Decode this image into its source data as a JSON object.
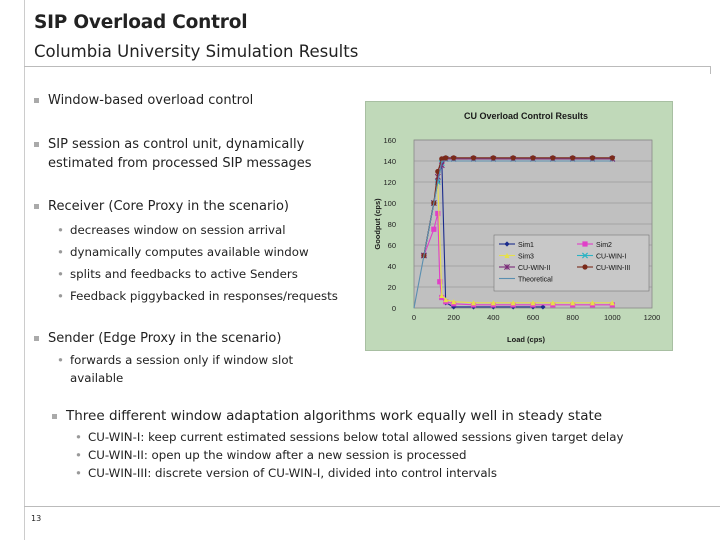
{
  "slide": {
    "title": "SIP Overload Control",
    "subtitle": "Columbia University Simulation Results",
    "page_number": "13",
    "bullets": [
      "Window-based overload control",
      "SIP session as control unit, dynamically estimated from processed SIP messages",
      "Receiver (Core Proxy in the scenario)",
      "Sender (Edge Proxy in the scenario)"
    ],
    "receiver_subs": [
      "decreases window on session arrival",
      "dynamically computes available window",
      "splits and feedbacks to active Senders",
      "Feedback piggybacked in responses/requests"
    ],
    "sender_sub": "forwards a session only if window slot available",
    "summary": "Three different window adaptation algorithms work equally well in steady state",
    "summary_subs": [
      "CU-WIN-I: keep current estimated sessions below total allowed sessions given target delay",
      "CU-WIN-II: open up the window after a new session is processed",
      "CU-WIN-III: discrete version of CU-WIN-I, divided into control intervals"
    ]
  },
  "chart_data": {
    "type": "line",
    "title": "CU Overload Control Results",
    "xlabel": "Load (cps)",
    "ylabel": "Goodput (cps)",
    "xlim": [
      0,
      1200
    ],
    "ylim": [
      0,
      160
    ],
    "xticks": [
      0,
      200,
      400,
      600,
      800,
      1000,
      1200
    ],
    "yticks": [
      0,
      20,
      40,
      60,
      80,
      100,
      120,
      140,
      160
    ],
    "legend": [
      "Sim1",
      "Sim2",
      "Sim3",
      "CU-WIN-I",
      "CU-WIN-II",
      "CU-WIN-III",
      "Theoretical"
    ],
    "series": [
      {
        "name": "Sim1",
        "color": "#1a2b8c",
        "marker": "diamond",
        "x": [
          50,
          100,
          120,
          140,
          160,
          200,
          300,
          400,
          500,
          600,
          650
        ],
        "y": [
          50,
          100,
          120,
          140,
          5,
          1,
          1,
          1,
          1,
          1,
          1
        ]
      },
      {
        "name": "Sim2",
        "color": "#e040c8",
        "marker": "square",
        "x": [
          50,
          100,
          120,
          130,
          140,
          160,
          200,
          300,
          400,
          500,
          600,
          700,
          800,
          900,
          1000
        ],
        "y": [
          50,
          75,
          90,
          25,
          10,
          6,
          4,
          3,
          3,
          3,
          3,
          3,
          3,
          3,
          3
        ]
      },
      {
        "name": "Sim3",
        "color": "#e6e04a",
        "marker": "triangle",
        "x": [
          50,
          100,
          120,
          140,
          160,
          200,
          300,
          400,
          500,
          600,
          700,
          800,
          900,
          1000
        ],
        "y": [
          50,
          100,
          120,
          12,
          8,
          6,
          5,
          5,
          5,
          5,
          5,
          5,
          5,
          5
        ]
      },
      {
        "name": "CU-WIN-I",
        "color": "#2ab3c4",
        "marker": "x",
        "x": [
          50,
          100,
          120,
          140,
          160,
          200,
          300,
          400,
          500,
          600,
          700,
          800,
          900,
          1000
        ],
        "y": [
          50,
          100,
          120,
          138,
          142,
          142,
          142,
          142,
          142,
          142,
          142,
          142,
          142,
          142
        ]
      },
      {
        "name": "CU-WIN-II",
        "color": "#7a2a78",
        "marker": "star",
        "x": [
          50,
          100,
          120,
          140,
          160,
          200,
          300,
          400,
          500,
          600,
          700,
          800,
          900,
          1000
        ],
        "y": [
          50,
          100,
          125,
          136,
          142,
          142,
          142,
          142,
          142,
          142,
          142,
          142,
          142,
          142
        ]
      },
      {
        "name": "CU-WIN-III",
        "color": "#7a2a1a",
        "marker": "circle",
        "x": [
          50,
          100,
          120,
          140,
          160,
          200,
          300,
          400,
          500,
          600,
          700,
          800,
          900,
          1000
        ],
        "y": [
          50,
          100,
          130,
          142,
          143,
          143,
          143,
          143,
          143,
          143,
          143,
          143,
          143,
          143
        ]
      },
      {
        "name": "Theoretical",
        "color": "#5a8fb0",
        "marker": "plus",
        "x": [
          0,
          140,
          1000
        ],
        "y": [
          0,
          140,
          140
        ]
      }
    ]
  }
}
